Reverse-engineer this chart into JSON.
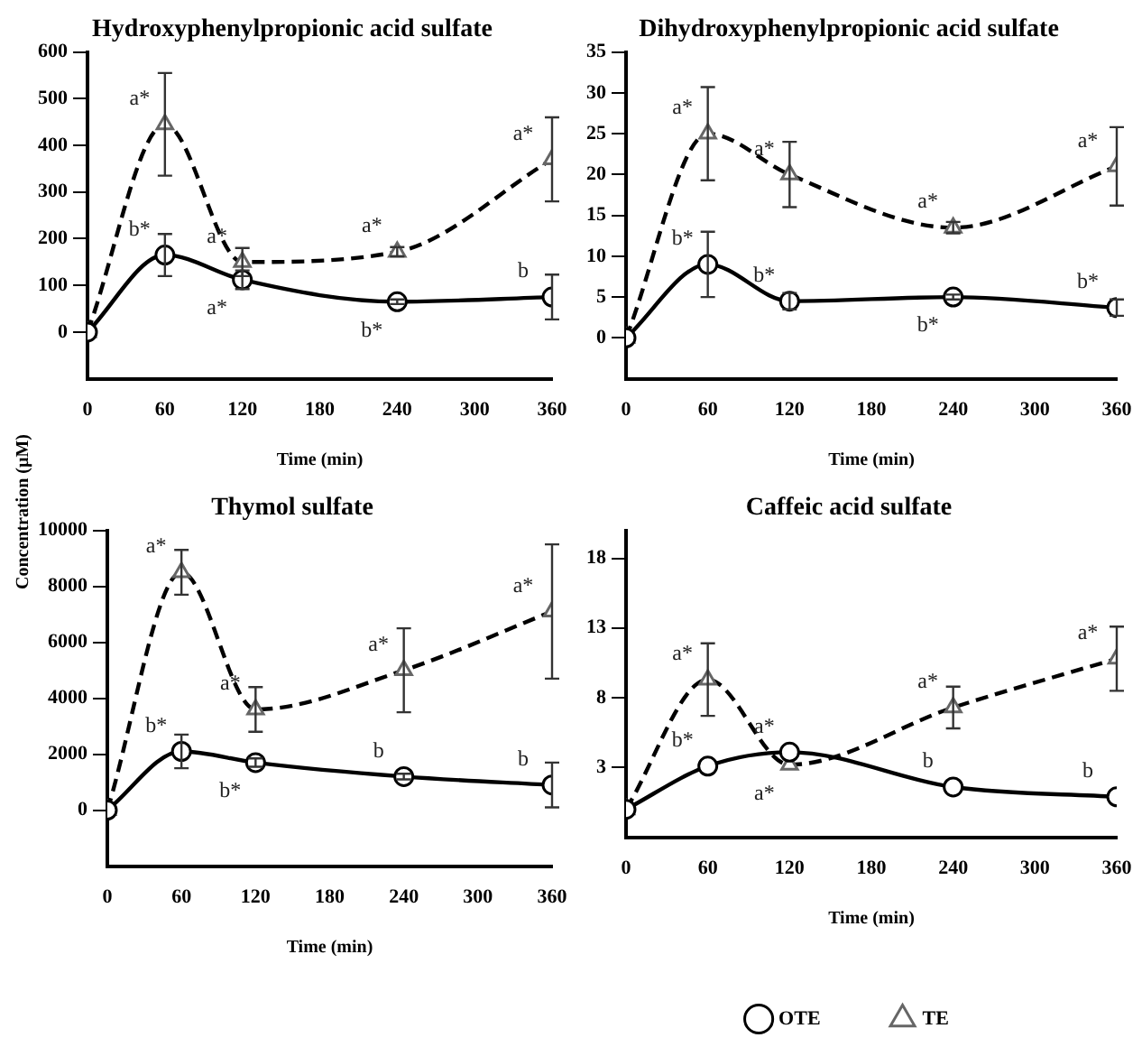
{
  "chart_data": [
    {
      "type": "line",
      "title": "Hydroxyphenylpropionic acid sulfate",
      "xlabel": "Time (min)",
      "ylabel": "Concentration (µM)",
      "x": [
        0,
        60,
        120,
        240,
        360
      ],
      "xlim": [
        0,
        360
      ],
      "xticks": [
        0,
        60,
        120,
        180,
        240,
        300,
        360
      ],
      "ylim": [
        -100,
        600
      ],
      "yticks": [
        0,
        100,
        200,
        300,
        400,
        500,
        600
      ],
      "grid": false,
      "series": [
        {
          "color": "#000000",
          "marker": "circle",
          "line_style": "solid",
          "values": [
            0,
            165,
            112,
            65,
            75
          ],
          "errors": [
            null,
            45,
            20,
            5,
            48
          ]
        },
        {
          "color": "#000000",
          "marker": "triangle",
          "line_style": "dashed",
          "values": [
            0,
            445,
            150,
            172,
            370
          ],
          "errors": [
            null,
            110,
            30,
            10,
            90
          ]
        }
      ],
      "annotations": [
        {
          "text": "a*",
          "x": 60,
          "y": 445
        },
        {
          "text": "b*",
          "x": 60,
          "y": 165
        },
        {
          "text": "a*",
          "x": 120,
          "y": 150
        },
        {
          "text": "a*",
          "x": 120,
          "y": 112
        },
        {
          "text": "a*",
          "x": 240,
          "y": 172
        },
        {
          "text": "b*",
          "x": 240,
          "y": 65
        },
        {
          "text": "a*",
          "x": 360,
          "y": 370
        },
        {
          "text": "b",
          "x": 360,
          "y": 75
        }
      ]
    },
    {
      "type": "line",
      "title": "Dihydroxyphenylpropionic acid sulfate",
      "xlabel": "Time (min)",
      "x": [
        0,
        60,
        120,
        240,
        360
      ],
      "xlim": [
        0,
        360
      ],
      "xticks": [
        0,
        60,
        120,
        180,
        240,
        300,
        360
      ],
      "ylim": [
        -5,
        35
      ],
      "yticks": [
        0,
        5,
        10,
        15,
        20,
        25,
        30,
        35
      ],
      "grid": false,
      "series": [
        {
          "color": "#000000",
          "marker": "circle",
          "line_style": "solid",
          "values": [
            0,
            9,
            4.5,
            5,
            3.7
          ],
          "errors": [
            null,
            4,
            1,
            0.3,
            1
          ]
        },
        {
          "color": "#000000",
          "marker": "triangle",
          "line_style": "dashed",
          "values": [
            0,
            25,
            20,
            13.5,
            21
          ],
          "errors": [
            null,
            5.7,
            4,
            0.7,
            4.8
          ]
        }
      ],
      "annotations": [
        {
          "text": "a*",
          "x": 60,
          "y": 25
        },
        {
          "text": "b*",
          "x": 60,
          "y": 9
        },
        {
          "text": "a*",
          "x": 120,
          "y": 20
        },
        {
          "text": "b*",
          "x": 120,
          "y": 4.5
        },
        {
          "text": "a*",
          "x": 240,
          "y": 13.5
        },
        {
          "text": "b*",
          "x": 240,
          "y": 5
        },
        {
          "text": "a*",
          "x": 360,
          "y": 21
        },
        {
          "text": "b*",
          "x": 360,
          "y": 3.7
        }
      ]
    },
    {
      "type": "line",
      "title": "Thymol sulfate",
      "xlabel": "Time (min)",
      "x": [
        0,
        60,
        120,
        240,
        360
      ],
      "xlim": [
        0,
        360
      ],
      "xticks": [
        0,
        60,
        120,
        180,
        240,
        300,
        360
      ],
      "ylim": [
        -2000,
        10000
      ],
      "yticks": [
        0,
        2000,
        4000,
        6000,
        8000,
        10000
      ],
      "grid": false,
      "series": [
        {
          "color": "#000000",
          "marker": "circle",
          "line_style": "solid",
          "values": [
            0,
            2100,
            1700,
            1200,
            900
          ],
          "errors": [
            null,
            600,
            150,
            100,
            800
          ]
        },
        {
          "color": "#000000",
          "marker": "triangle",
          "line_style": "dashed",
          "values": [
            0,
            8500,
            3600,
            5000,
            7100
          ],
          "errors": [
            null,
            800,
            800,
            1500,
            2400
          ]
        }
      ],
      "annotations": [
        {
          "text": "a*",
          "x": 60,
          "y": 8500
        },
        {
          "text": "b*",
          "x": 60,
          "y": 2100
        },
        {
          "text": "b*",
          "x": 120,
          "y": 1700
        },
        {
          "text": "a*",
          "x": 120,
          "y": 3600
        },
        {
          "text": "a*",
          "x": 240,
          "y": 5000
        },
        {
          "text": "a*",
          "x": 360,
          "y": 7100
        },
        {
          "text": "b",
          "x": 240,
          "y": 1200
        },
        {
          "text": "b",
          "x": 360,
          "y": 900
        }
      ]
    },
    {
      "type": "line",
      "title": "Caffeic acid sulfate",
      "xlabel": "Time (min)",
      "x": [
        0,
        60,
        120,
        240,
        360
      ],
      "xlim": [
        0,
        360
      ],
      "xticks": [
        0,
        60,
        120,
        180,
        240,
        300,
        360
      ],
      "ylim": [
        -2,
        20
      ],
      "yticks": [
        3,
        8,
        13,
        18
      ],
      "grid": false,
      "legend": "bottom",
      "series": [
        {
          "name": "OTE",
          "color": "#000000",
          "marker": "circle",
          "line_style": "solid",
          "values": [
            0,
            3.1,
            4.1,
            1.6,
            0.9
          ]
        },
        {
          "name": "TE",
          "color": "#000000",
          "marker": "triangle",
          "line_style": "dashed",
          "values": [
            0,
            9.3,
            3.2,
            7.3,
            10.8
          ],
          "errors": [
            null,
            2.6,
            null,
            1.5,
            2.3
          ]
        }
      ],
      "annotations": [
        {
          "text": "a*",
          "x": 60,
          "y": 9.3
        },
        {
          "text": "b*",
          "x": 60,
          "y": 3.1
        },
        {
          "text": "a*",
          "x": 120,
          "y": 4.1
        },
        {
          "text": "a*",
          "x": 120,
          "y": 3.2
        },
        {
          "text": "a*",
          "x": 240,
          "y": 7.3
        },
        {
          "text": "b",
          "x": 240,
          "y": 1.6
        },
        {
          "text": "a*",
          "x": 360,
          "y": 10.8
        },
        {
          "text": "b",
          "x": 360,
          "y": 0.9
        }
      ]
    }
  ]
}
